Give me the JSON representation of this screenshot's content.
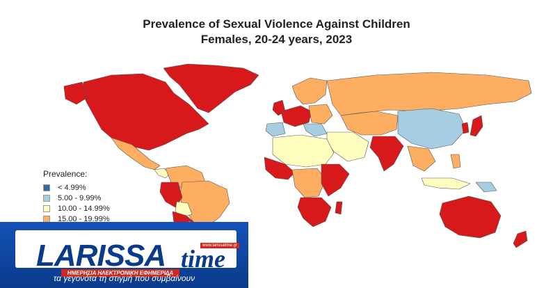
{
  "title_line1": "Prevalence of Sexual Violence Against Children",
  "title_line2": "Females, 20-24 years, 2023",
  "legend": {
    "title": "Prevalence:",
    "items": [
      {
        "label": "< 4.99%",
        "color": "#2e6da4"
      },
      {
        "label": "5.00 - 9.99%",
        "color": "#a6cee3"
      },
      {
        "label": "10.00 - 14.99%",
        "color": "#ffffc0"
      },
      {
        "label": "15.00 - 19.99%",
        "color": "#fdae61"
      }
    ]
  },
  "colors": {
    "high": "#d7191c",
    "mid_high": "#fdae61",
    "mid": "#ffffc0",
    "low": "#a6cee3",
    "border": "#555555"
  },
  "banner": {
    "logo_text_1": "LARISSA",
    "logo_text_2": "time",
    "url": "www.larissatime.gr",
    "strip": "ΗΜΕΡΗΣΙΑ ΗΛΕΚΤΡΟΝΙΚΗ ΕΦΗΜΕΡΙΔΑ",
    "tagline": "τα γεγονότα τη στιγμή που συμβαίνουν"
  }
}
